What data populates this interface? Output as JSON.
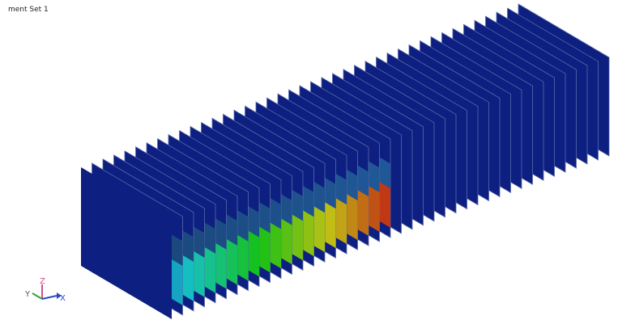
{
  "viewport": {
    "title": "ment Set 1",
    "triad": {
      "x": "X",
      "y": "Y",
      "z": "Z"
    }
  }
}
